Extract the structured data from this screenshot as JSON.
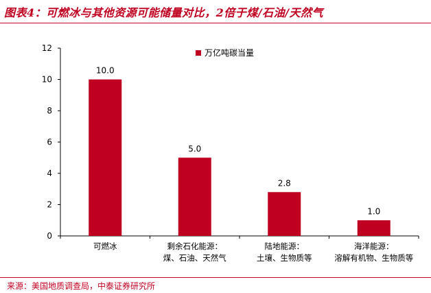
{
  "title": "图表4：可燃冰与其他资源可能储量对比，2倍于煤/石油/天然气",
  "source": "来源：美国地质调查局，中泰证券研究所",
  "chart_data": {
    "type": "bar",
    "categories": [
      [
        "可燃冰"
      ],
      [
        "剩余石化能源：",
        "煤、石油、天然气"
      ],
      [
        "陆地能源：",
        "土壤、生物质等"
      ],
      [
        "海洋能源：",
        "溶解有机物、生物质等"
      ]
    ],
    "series": [
      {
        "name": "万亿吨碳当量",
        "values": [
          10.0,
          5.0,
          2.8,
          1.0
        ],
        "color": "#c00020"
      }
    ],
    "value_labels": [
      "10.0",
      "5.0",
      "2.8",
      "1.0"
    ],
    "ylim": [
      0,
      12
    ],
    "yticks": [
      0,
      2,
      4,
      6,
      8,
      10,
      12
    ],
    "legend_position": "top-center",
    "grid": false
  }
}
